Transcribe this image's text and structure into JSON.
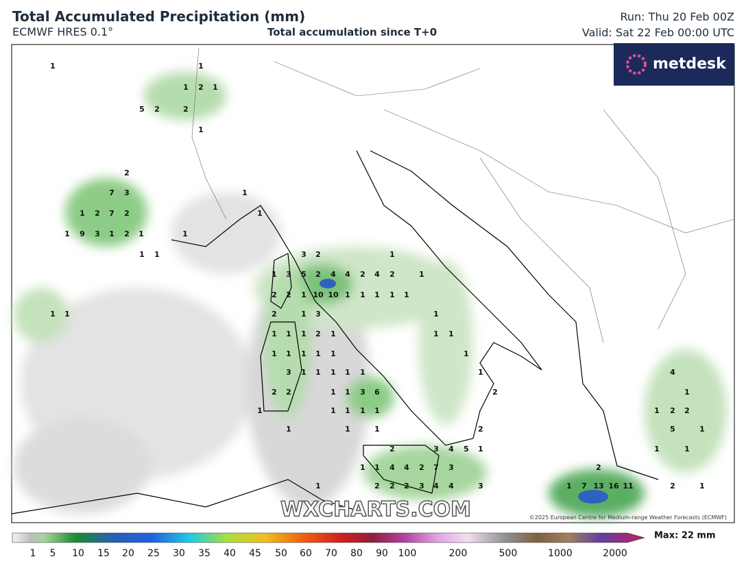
{
  "header": {
    "title": "Total Accumulated Precipitation (mm)",
    "model": "ECMWF HRES 0.1°",
    "subtitle": "Total accumulation since T+0",
    "run": "Run: Thu 20 Feb 00Z",
    "valid": "Valid: Sat 22 Feb 00:00 UTC"
  },
  "logo": "metdesk",
  "watermark": "WXCHARTS.COM",
  "copyright": "©2025 European Centre for Medium-range Weather Forecasts (ECMWF)",
  "max_label": "Max: 22 mm",
  "colorbar_ticks": [
    1,
    5,
    10,
    15,
    20,
    25,
    30,
    35,
    40,
    45,
    50,
    60,
    70,
    80,
    90,
    100,
    200,
    500,
    1000,
    2000
  ],
  "map_labels": [
    1,
    1,
    1,
    2,
    1,
    5,
    2,
    2,
    1,
    2,
    7,
    3,
    1,
    2,
    7,
    2,
    1,
    9,
    3,
    1,
    2,
    1,
    1,
    1,
    1,
    1,
    1,
    3,
    2,
    1,
    1,
    3,
    5,
    2,
    4,
    4,
    2,
    4,
    2,
    1,
    2,
    2,
    1,
    10,
    10,
    1,
    1,
    1,
    1,
    1,
    1,
    1,
    2,
    1,
    3,
    1,
    1,
    1,
    1,
    2,
    1,
    1,
    1,
    1,
    1,
    1,
    1,
    1,
    1,
    3,
    1,
    1,
    1,
    1,
    1,
    1,
    4,
    2,
    2,
    1,
    1,
    3,
    6,
    2,
    1,
    1,
    1,
    1,
    1,
    1,
    1,
    2,
    2,
    1,
    1,
    1,
    2,
    5,
    1,
    2,
    3,
    4,
    5,
    1,
    1,
    1,
    1,
    1,
    4,
    4,
    2,
    7,
    3,
    2,
    1,
    2,
    2,
    2,
    3,
    4,
    4,
    3,
    1,
    7,
    13,
    16,
    11,
    2,
    1
  ]
}
